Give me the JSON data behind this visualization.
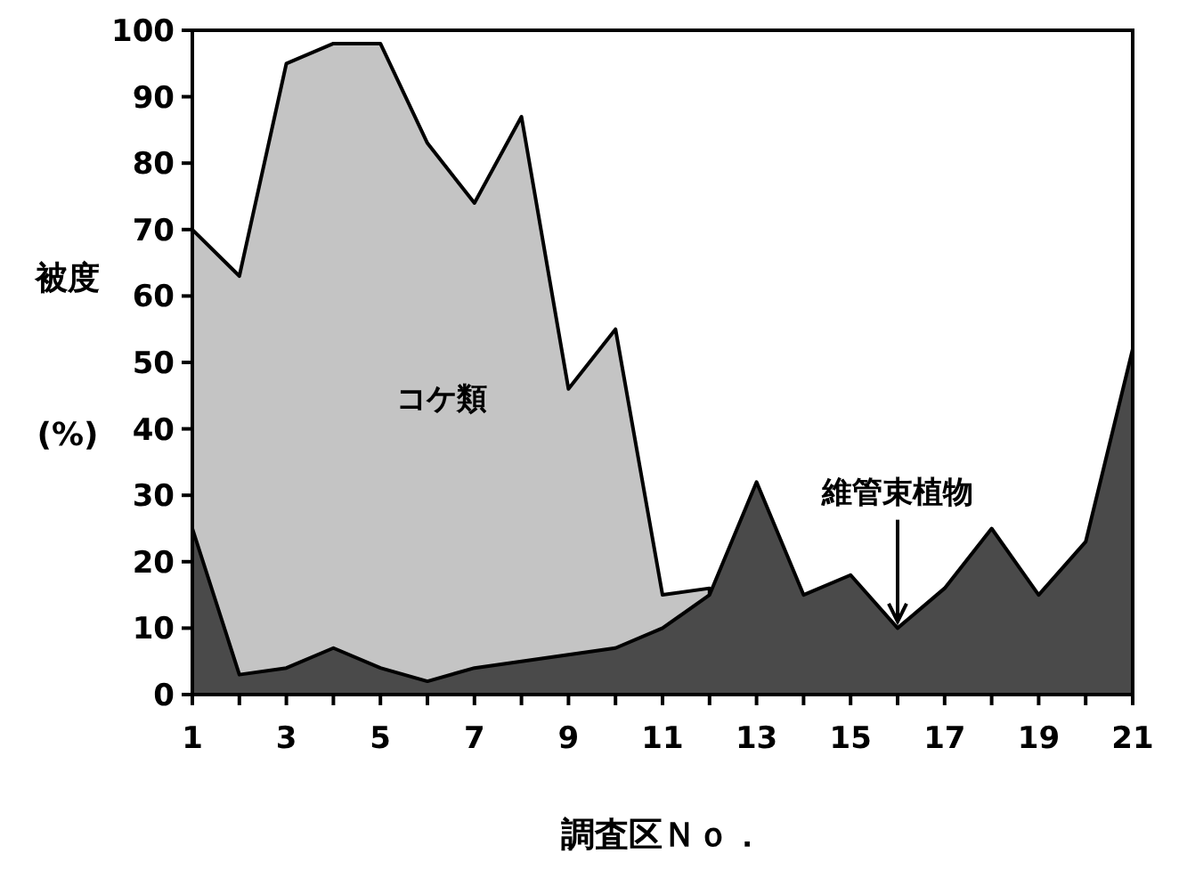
{
  "chart_data": {
    "type": "area",
    "xlabel": "調査区Ｎｏ．",
    "ylabel": "被度 (%)",
    "x": [
      1,
      2,
      3,
      4,
      5,
      6,
      7,
      8,
      9,
      10,
      11,
      12,
      13,
      14,
      15,
      16,
      17,
      18,
      19,
      20,
      21
    ],
    "xlim": [
      1,
      21
    ],
    "xticks": [
      1,
      {
        "value": 2,
        "label": null
      },
      3,
      {
        "value": 4,
        "label": null
      },
      5,
      {
        "value": 6,
        "label": null
      },
      7,
      {
        "value": 8,
        "label": null
      },
      9,
      {
        "value": 10,
        "label": null
      },
      11,
      {
        "value": 12,
        "label": null
      },
      13,
      {
        "value": 14,
        "label": null
      },
      15,
      {
        "value": 16,
        "label": null
      },
      17,
      {
        "value": 18,
        "label": null
      },
      19,
      {
        "value": 20,
        "label": null
      },
      21
    ],
    "ylim": [
      0,
      100
    ],
    "yticks": [
      0,
      10,
      20,
      30,
      40,
      50,
      60,
      70,
      80,
      90,
      100
    ],
    "series": [
      {
        "name": "コケ類",
        "color": "#c4c4c4",
        "values": [
          70,
          63,
          95,
          98,
          98,
          83,
          74,
          87,
          46,
          55,
          15,
          16,
          null,
          null,
          null,
          null,
          null,
          null,
          null,
          null,
          null
        ]
      },
      {
        "name": "維管束植物",
        "color": "#4a4a4a",
        "values": [
          25,
          3,
          4,
          7,
          4,
          2,
          4,
          5,
          6,
          7,
          10,
          15,
          32,
          15,
          18,
          10,
          16,
          25,
          15,
          23,
          52
        ]
      }
    ]
  }
}
